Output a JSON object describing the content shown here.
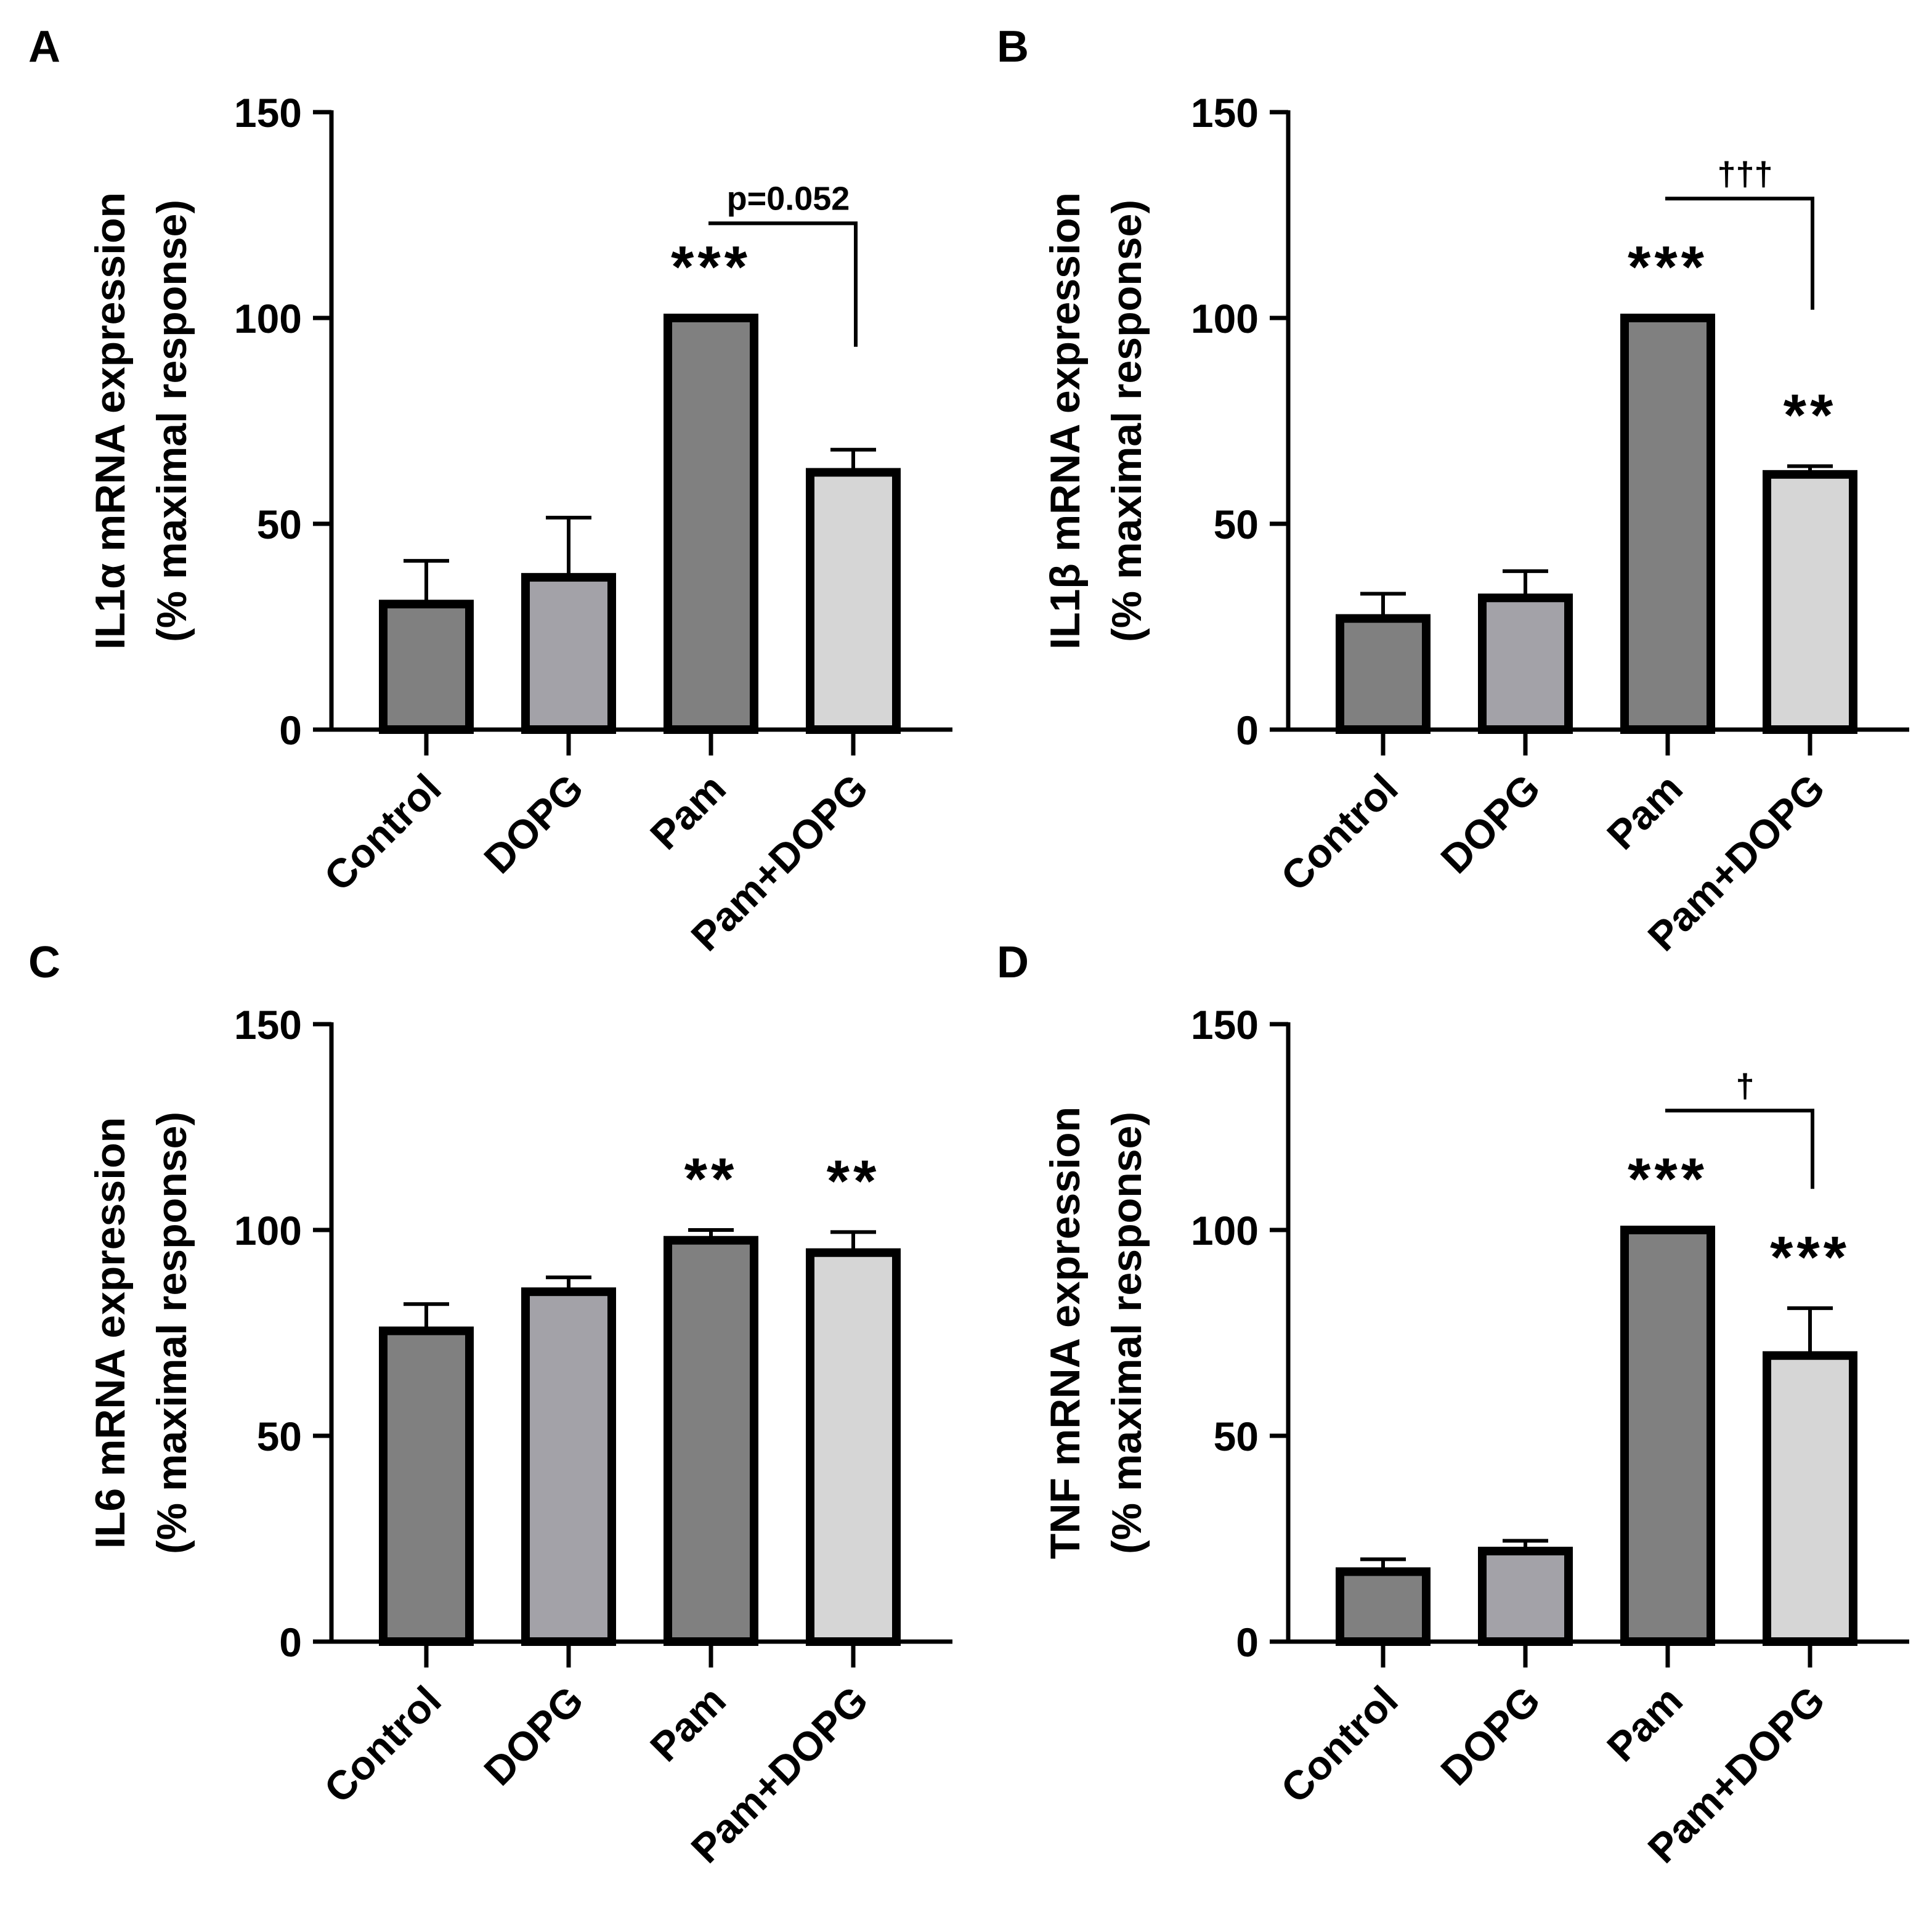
{
  "chart_data": [
    {
      "panel": "A",
      "type": "bar",
      "ylabel": "IL1α mRNA expression",
      "ylabel2": "(% maximal response)",
      "categories": [
        "Control",
        "DOPG",
        "Pam",
        "Pam+DOPG"
      ],
      "values": [
        30.5,
        37,
        100,
        62.5
      ],
      "errors": [
        10.5,
        14.5,
        0,
        5.5
      ],
      "ylim": [
        0,
        150
      ],
      "yticks": [
        "0",
        "50",
        "100",
        "150"
      ],
      "stars": [
        "",
        "",
        "***",
        ""
      ],
      "comparison": {
        "from": 2,
        "to": 3,
        "label": "p=0.052",
        "level": 123,
        "drop": 93
      }
    },
    {
      "panel": "B",
      "type": "bar",
      "ylabel": "IL1β mRNA expression",
      "ylabel2": "(% maximal response)",
      "categories": [
        "Control",
        "DOPG",
        "Pam",
        "Pam+DOPG"
      ],
      "values": [
        27,
        32,
        100,
        62
      ],
      "errors": [
        6,
        6.5,
        0,
        2
      ],
      "ylim": [
        0,
        150
      ],
      "yticks": [
        "0",
        "50",
        "100",
        "150"
      ],
      "stars": [
        "",
        "",
        "***",
        "**"
      ],
      "comparison": {
        "from": 2,
        "to": 3,
        "label": "†††",
        "level": 129,
        "drop": 102
      }
    },
    {
      "panel": "C",
      "type": "bar",
      "ylabel": "IL6 mRNA expression",
      "ylabel2": "(% maximal response)",
      "categories": [
        "Control",
        "DOPG",
        "Pam",
        "Pam+DOPG"
      ],
      "values": [
        75.5,
        85,
        97.5,
        94.5
      ],
      "errors": [
        6.5,
        3.5,
        2.5,
        5
      ],
      "ylim": [
        0,
        150
      ],
      "yticks": [
        "0",
        "50",
        "100",
        "150"
      ],
      "stars": [
        "",
        "",
        "**",
        "**"
      ],
      "comparison": null
    },
    {
      "panel": "D",
      "type": "bar",
      "ylabel": "TNF mRNA expression",
      "ylabel2": "(% maximal response)",
      "categories": [
        "Control",
        "DOPG",
        "Pam",
        "Pam+DOPG"
      ],
      "values": [
        17,
        22,
        100,
        69.5
      ],
      "errors": [
        3,
        2.5,
        0,
        11.5
      ],
      "ylim": [
        0,
        150
      ],
      "yticks": [
        "0",
        "50",
        "100",
        "150"
      ],
      "stars": [
        "",
        "",
        "***",
        "***"
      ],
      "comparison": {
        "from": 2,
        "to": 3,
        "label": "†",
        "level": 129,
        "drop": 110
      }
    }
  ],
  "colors": {
    "bars": [
      "#808080",
      "#a3a2a8",
      "#808080",
      "#d6d6d6"
    ],
    "stroke": "#000000"
  }
}
